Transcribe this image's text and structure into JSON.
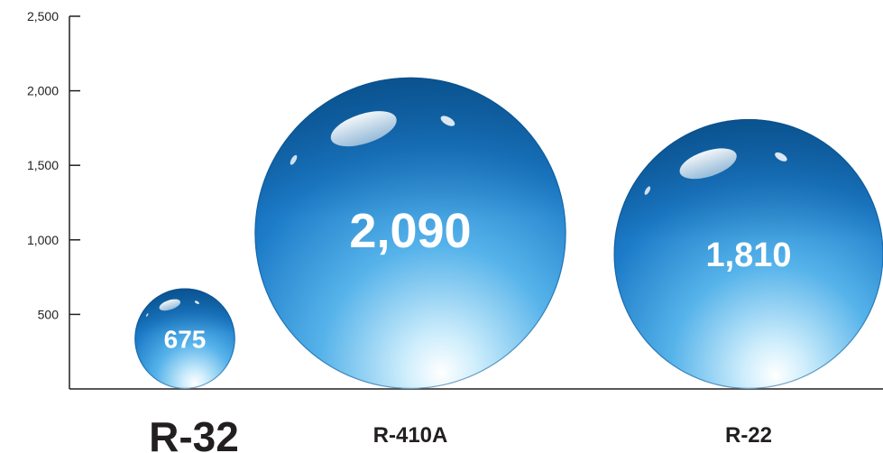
{
  "chart_data": {
    "type": "bubble",
    "title": "",
    "xlabel": "",
    "ylabel": "",
    "ylim": [
      0,
      2500
    ],
    "y_ticks": [
      500,
      1000,
      1500,
      2000,
      2500
    ],
    "y_tick_labels": [
      "500",
      "1,000",
      "1,500",
      "2,000",
      "2,500"
    ],
    "categories": [
      "R-32",
      "R-410A",
      "R-22"
    ],
    "values": [
      675,
      2090,
      1810
    ],
    "value_labels": [
      "675",
      "2,090",
      "1,810"
    ],
    "grid": false,
    "legend": "none"
  },
  "colors": {
    "bubble_light": "#cfeefc",
    "bubble_mid": "#2f8fd6",
    "bubble_dark": "#0c5a9c",
    "axis": "#231f20",
    "value_text": "#ffffff"
  }
}
